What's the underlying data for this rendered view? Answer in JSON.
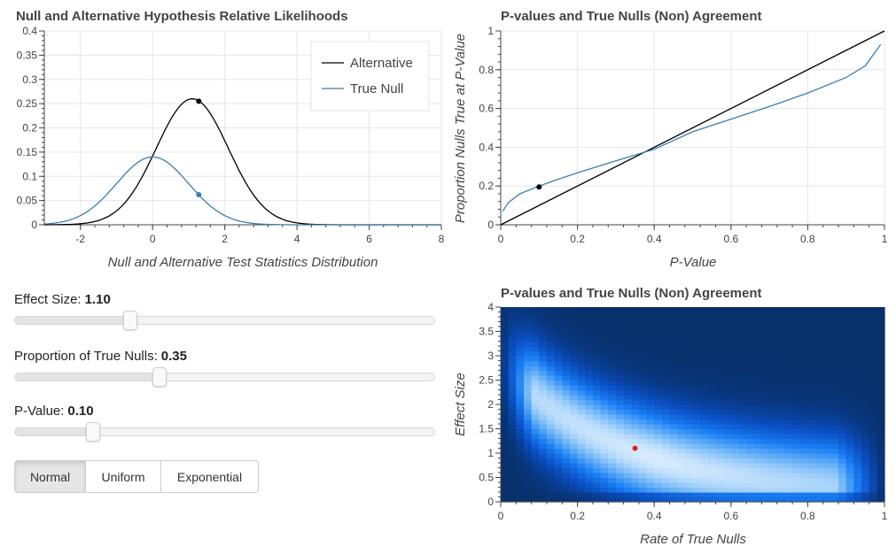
{
  "plot1": {
    "title": "Null and Alternative Hypothesis Relative Likelihoods",
    "xlabel": "Null and Alternative Test Statistics Distribution",
    "legend": [
      "Alternative",
      "True Null"
    ]
  },
  "plot2": {
    "title": "P-values and True Nulls (Non) Agreement",
    "xlabel": "P-Value",
    "ylabel": "Proportion Nulls True at P-Value"
  },
  "plot3": {
    "title": "P-values and True Nulls (Non) Agreement",
    "xlabel": "Rate of True Nulls",
    "ylabel": "Effect Size"
  },
  "controls": {
    "effect_size": {
      "label": "Effect Size:",
      "value": "1.10"
    },
    "prop_nulls": {
      "label": "Proportion of True Nulls:",
      "value": "0.35"
    },
    "p_value": {
      "label": "P-Value:",
      "value": "0.10"
    },
    "buttons": [
      "Normal",
      "Uniform",
      "Exponential"
    ],
    "active_button": "Normal"
  },
  "chart_data": [
    {
      "type": "line",
      "title": "Null and Alternative Hypothesis Relative Likelihoods",
      "xlabel": "Null and Alternative Test Statistics Distribution",
      "xlim": [
        -3,
        8
      ],
      "ylim": [
        0,
        0.4
      ],
      "xticks": [
        "-2",
        "0",
        "2",
        "4",
        "6",
        "8"
      ],
      "yticks": [
        "0",
        "0.05",
        "0.1",
        "0.15",
        "0.2",
        "0.25",
        "0.3",
        "0.35",
        "0.4"
      ],
      "legend_position": "top-right",
      "series": [
        {
          "name": "Alternative",
          "color": "#000000",
          "mean": 1.1,
          "sd": 1,
          "scale": 0.65,
          "marker": {
            "x": 1.28,
            "y": 0.255
          }
        },
        {
          "name": "True Null",
          "color": "#3a7fb0",
          "mean": 0,
          "sd": 1,
          "scale": 0.35,
          "marker": {
            "x": 1.28,
            "y": 0.062
          }
        }
      ]
    },
    {
      "type": "line",
      "title": "P-values and True Nulls (Non) Agreement",
      "xlabel": "P-Value",
      "ylabel": "Proportion Nulls True at P-Value",
      "xlim": [
        0,
        1
      ],
      "ylim": [
        0,
        1
      ],
      "xticks": [
        "0",
        "0.2",
        "0.4",
        "0.6",
        "0.8",
        "1"
      ],
      "yticks": [
        "0",
        "0.2",
        "0.4",
        "0.6",
        "0.8",
        "1"
      ],
      "series": [
        {
          "name": "",
          "color": "#000000",
          "x": [
            0,
            1
          ],
          "y": [
            0,
            1
          ]
        },
        {
          "name": "",
          "color": "#3a7fb0",
          "x": [
            0.005,
            0.02,
            0.05,
            0.1,
            0.15,
            0.2,
            0.3,
            0.4,
            0.5,
            0.6,
            0.7,
            0.8,
            0.9,
            0.95,
            0.99
          ],
          "y": [
            0.07,
            0.115,
            0.16,
            0.2,
            0.235,
            0.268,
            0.33,
            0.39,
            0.48,
            0.545,
            0.61,
            0.68,
            0.76,
            0.82,
            0.93
          ],
          "marker": {
            "x": 0.1,
            "y": 0.195
          }
        }
      ]
    },
    {
      "type": "heatmap",
      "title": "P-values and True Nulls (Non) Agreement",
      "xlabel": "Rate of True Nulls",
      "ylabel": "Effect Size",
      "xlim": [
        0,
        1
      ],
      "ylim": [
        0,
        4
      ],
      "xticks": [
        "0",
        "0.2",
        "0.4",
        "0.6",
        "0.8",
        "1"
      ],
      "yticks": [
        "0",
        "0.5",
        "1",
        "1.5",
        "2",
        "2.5",
        "3",
        "3.5",
        "4"
      ],
      "colormap": [
        "#08306b",
        "#0a4fc4",
        "#1a7ff5",
        "#6fb6f8",
        "#d9ecfd"
      ],
      "marker": {
        "x": 0.35,
        "y": 1.1,
        "color": "#e02020"
      }
    }
  ]
}
